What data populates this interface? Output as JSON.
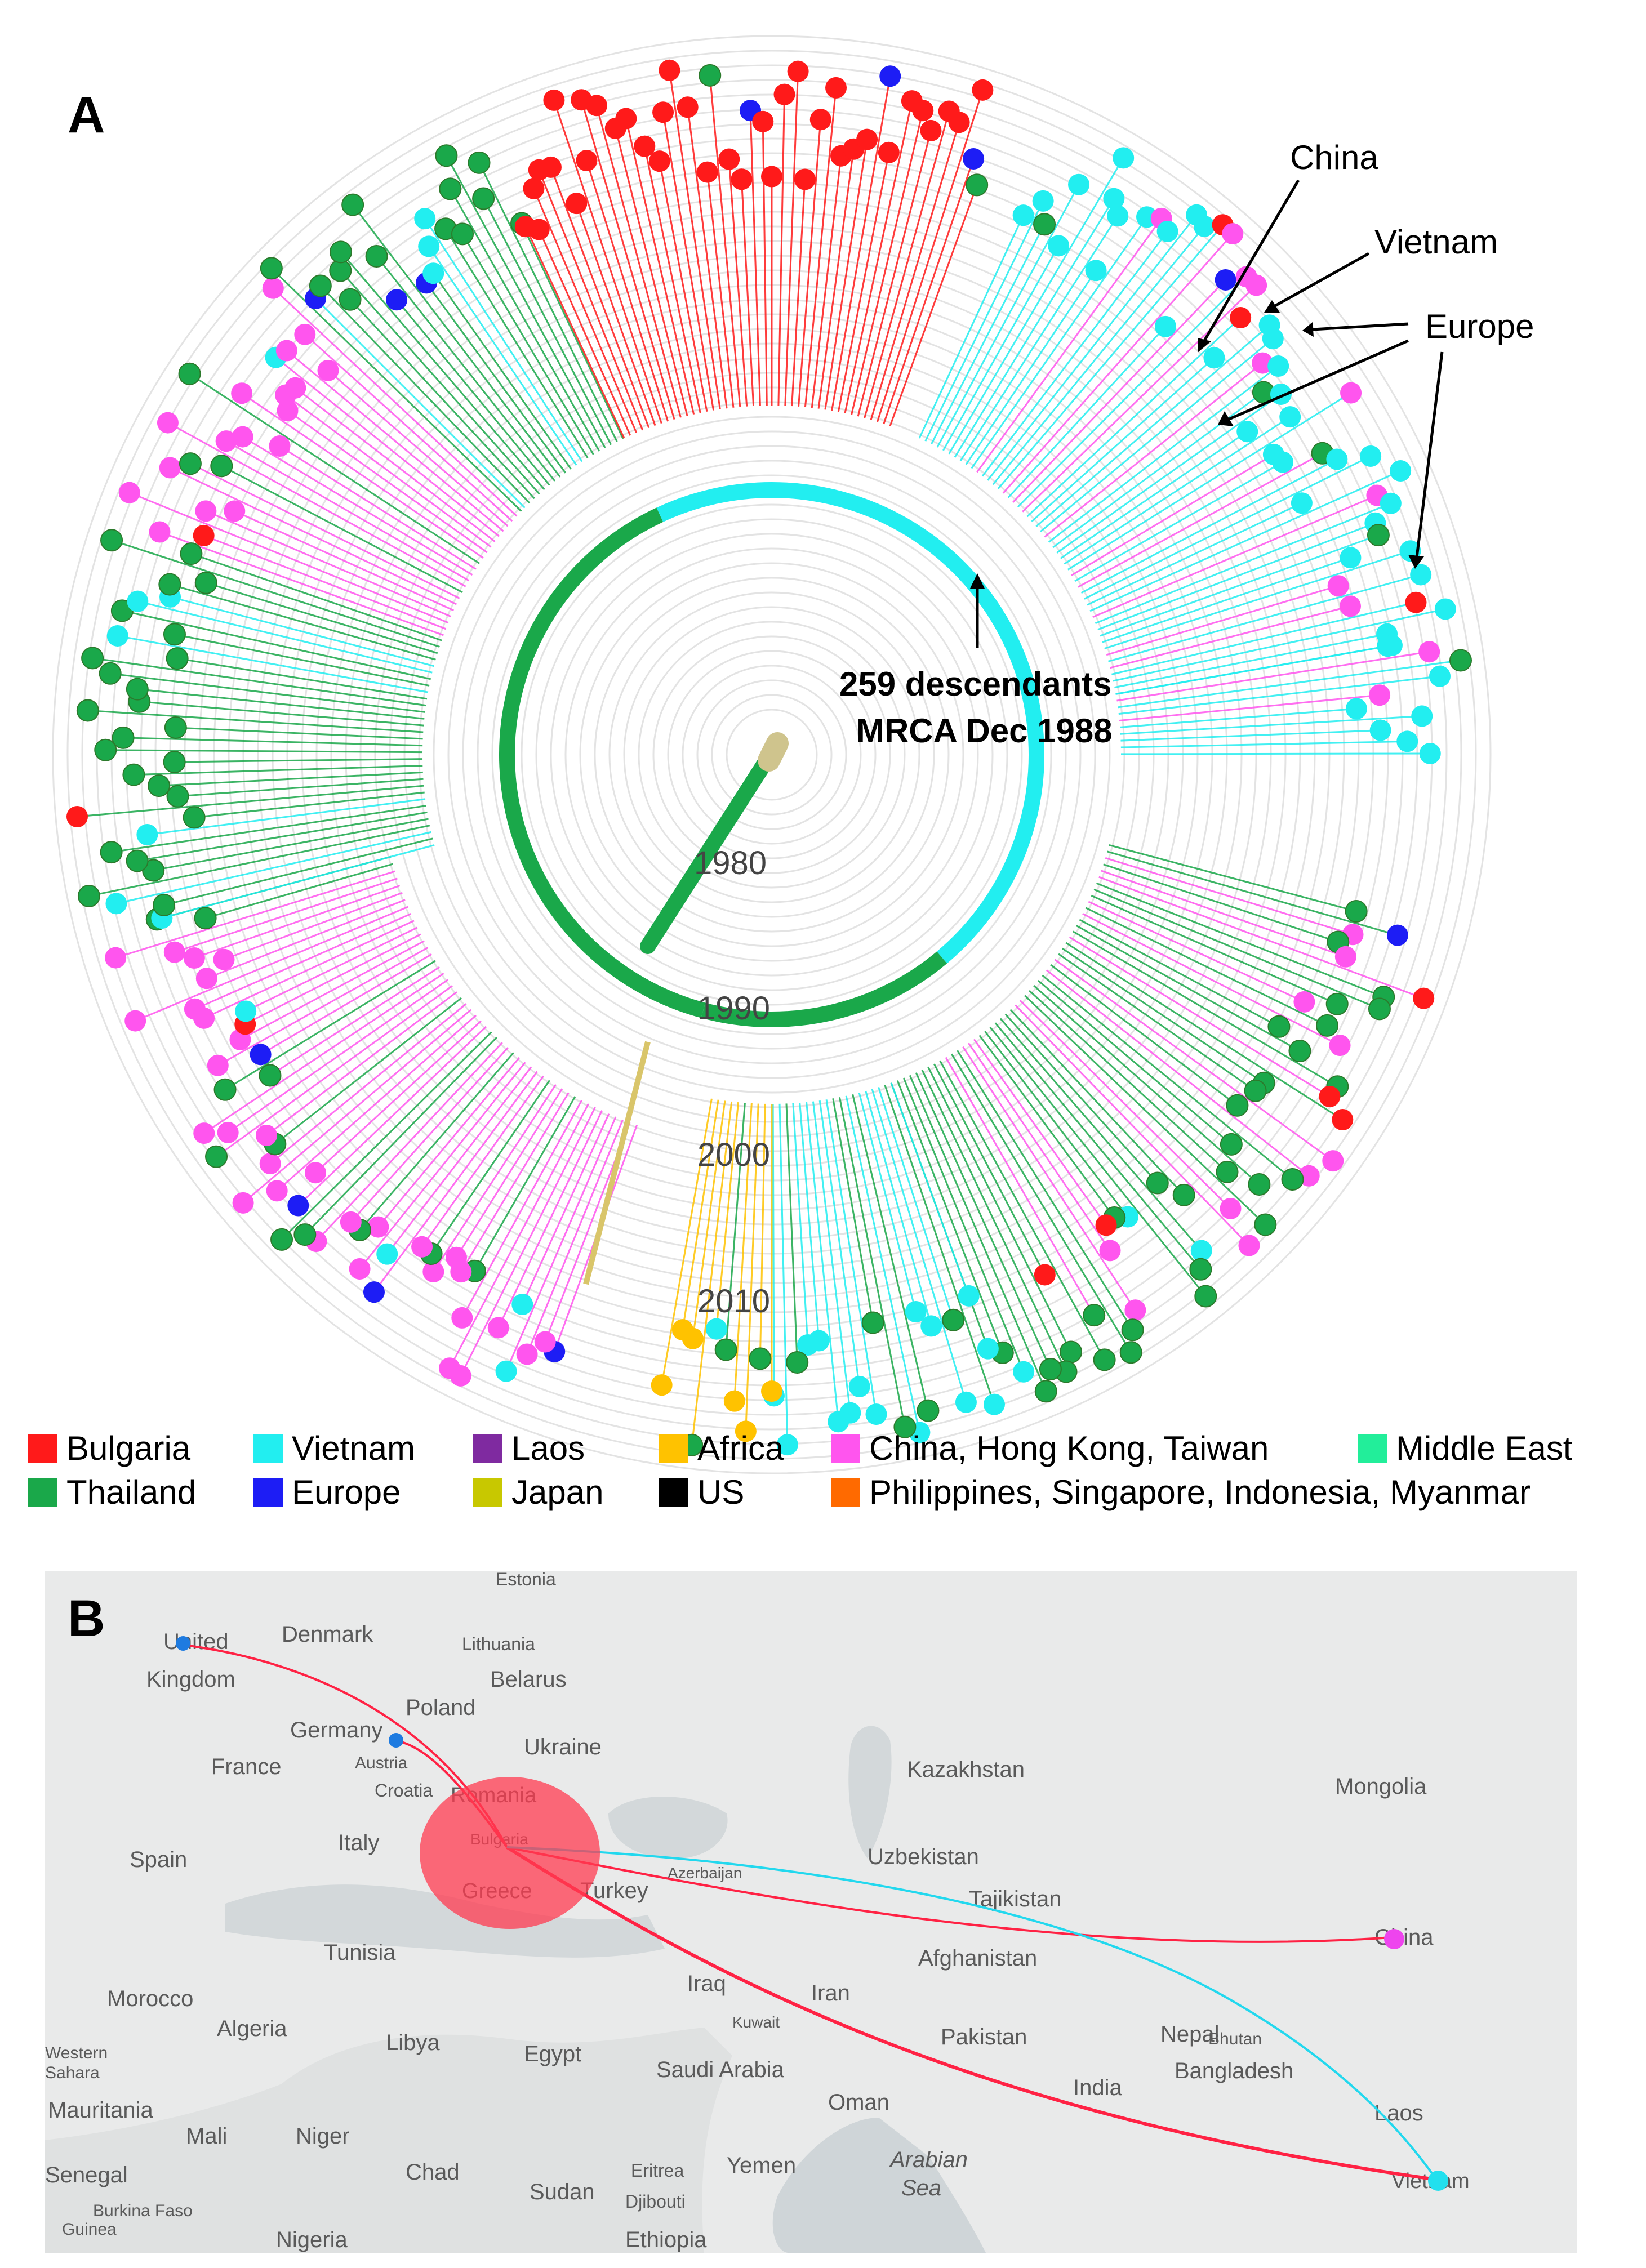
{
  "panel_a": {
    "label": "A",
    "year_labels": [
      "1980",
      "1990",
      "2000",
      "2010"
    ],
    "annotations": {
      "china": "China",
      "vietnam": "Vietnam",
      "europe": "Europe",
      "descendants_line1": "259 descendants",
      "descendants_line2": "MRCA Dec 1988"
    },
    "legend": [
      {
        "label": "Bulgaria",
        "color": "#ff1a1a"
      },
      {
        "label": "Thailand",
        "color": "#1aa84a"
      },
      {
        "label": "Vietnam",
        "color": "#22eef0"
      },
      {
        "label": "Europe",
        "color": "#1d1df5"
      },
      {
        "label": "Laos",
        "color": "#7f2aa0"
      },
      {
        "label": "Japan",
        "color": "#c8c800"
      },
      {
        "label": "Africa",
        "color": "#ffc200"
      },
      {
        "label": "US",
        "color": "#000000"
      },
      {
        "label": "China, Hong Kong, Taiwan",
        "color": "#ff55ee"
      },
      {
        "label": "Philippines, Singapore, Indonesia, Myanmar",
        "color": "#ff6a00"
      },
      {
        "label": "Middle East",
        "color": "#22ee9a"
      }
    ]
  },
  "panel_b": {
    "label": "B",
    "countries": [
      "Estonia",
      "Denmark",
      "Lithuania",
      "United",
      "Kingdom",
      "Belarus",
      "Poland",
      "Germany",
      "Ukraine",
      "France",
      "Austria",
      "Croatia",
      "Romania",
      "Kazakhstan",
      "Mongolia",
      "Spain",
      "Italy",
      "Bulgaria",
      "Azerbaijan",
      "Uzbekistan",
      "Greece",
      "Turkey",
      "Tajikistan",
      "China",
      "Tunisia",
      "Afghanistan",
      "Morocco",
      "Iraq",
      "Iran",
      "Kuwait",
      "Algeria",
      "Libya",
      "Pakistan",
      "Nepal",
      "Bhutan",
      "Egypt",
      "Western",
      "Sahara",
      "Saudi Arabia",
      "Bangladesh",
      "India",
      "Mauritania",
      "Oman",
      "Laos",
      "Mali",
      "Niger",
      "Yemen",
      "Arabian",
      "Sea",
      "Chad",
      "Eritrea",
      "Sudan",
      "Djibouti",
      "Vietnam",
      "Burkina Faso",
      "Guinea",
      "Nigeria",
      "Ethiopia",
      "Senegal"
    ],
    "routes": [
      {
        "from": "United Kingdom",
        "to": "Bulgaria",
        "color": "#ff2244"
      },
      {
        "from": "Germany",
        "to": "Bulgaria",
        "color": "#ff2244"
      },
      {
        "from": "Bulgaria",
        "to": "China",
        "color": "#ff2244"
      },
      {
        "from": "Bulgaria",
        "to": "Vietnam",
        "color": "#ff2244"
      },
      {
        "from": "Bulgaria",
        "to": "Vietnam",
        "color": "#22d8ee"
      }
    ]
  }
}
